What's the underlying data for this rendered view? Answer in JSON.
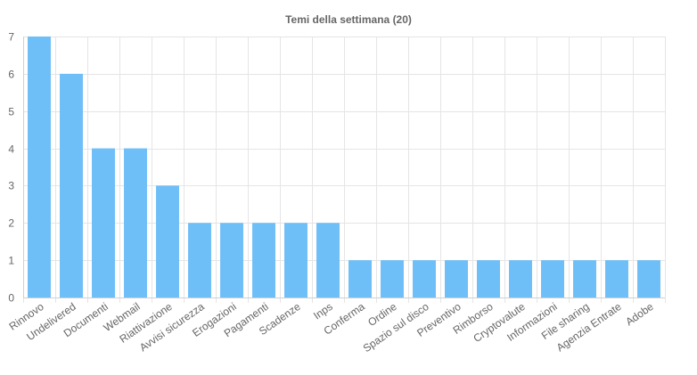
{
  "chart_data": {
    "type": "bar",
    "title": "Temi della settimana (20)",
    "xlabel": "",
    "ylabel": "",
    "ylim": [
      0,
      7
    ],
    "yticks": [
      0,
      1,
      2,
      3,
      4,
      5,
      6,
      7
    ],
    "grid": true,
    "legend": "none",
    "bar_color": "#6ebef7",
    "categories": [
      "Rinnovo",
      "Undelivered",
      "Documenti",
      "Webmail",
      "Riattivazione",
      "Avvisi sicurezza",
      "Erogazioni",
      "Pagamenti",
      "Scadenze",
      "Inps",
      "Conferma",
      "Ordine",
      "Spazio sul disco",
      "Preventivo",
      "Rimborso",
      "Cryptovalute",
      "Informazioni",
      "File sharing",
      "Agenzia Entrate",
      "Adobe"
    ],
    "values": [
      7,
      6,
      4,
      4,
      3,
      2,
      2,
      2,
      2,
      2,
      1,
      1,
      1,
      1,
      1,
      1,
      1,
      1,
      1,
      1
    ]
  }
}
